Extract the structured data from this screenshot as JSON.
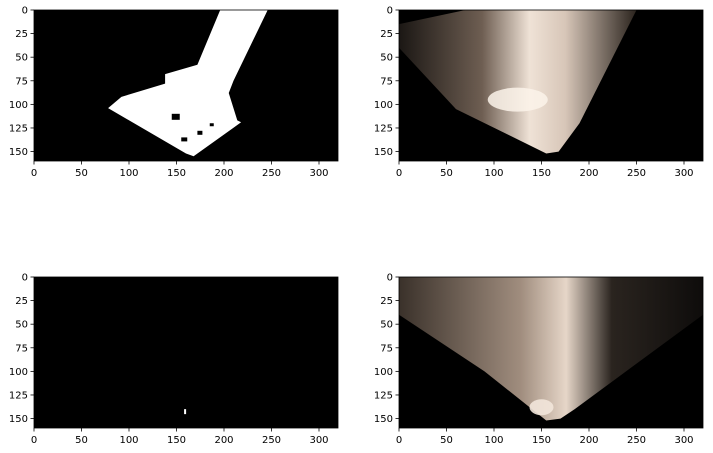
{
  "chart_data": [
    {
      "type": "image",
      "panel": "top-left",
      "content": "binary threshold mask (white region on black)",
      "xlim": [
        0,
        320
      ],
      "ylim": [
        160,
        0
      ],
      "xticks": [
        0,
        50,
        100,
        150,
        200,
        250,
        300
      ],
      "yticks": [
        0,
        25,
        50,
        75,
        100,
        125,
        150
      ]
    },
    {
      "type": "image",
      "panel": "top-right",
      "content": "perspective-warped camera image",
      "xlim": [
        0,
        320
      ],
      "ylim": [
        160,
        0
      ],
      "xticks": [
        0,
        50,
        100,
        150,
        200,
        250,
        300
      ],
      "yticks": [
        0,
        25,
        50,
        75,
        100,
        125,
        150
      ]
    },
    {
      "type": "image",
      "panel": "bottom-left",
      "content": "binary threshold mask (mostly black, small white speck)",
      "xlim": [
        0,
        320
      ],
      "ylim": [
        160,
        0
      ],
      "xticks": [
        0,
        50,
        100,
        150,
        200,
        250,
        300
      ],
      "yticks": [
        0,
        25,
        50,
        75,
        100,
        125,
        150
      ]
    },
    {
      "type": "image",
      "panel": "bottom-right",
      "content": "perspective-warped camera image",
      "xlim": [
        0,
        320
      ],
      "ylim": [
        160,
        0
      ],
      "xticks": [
        0,
        50,
        100,
        150,
        200,
        250,
        300
      ],
      "yticks": [
        0,
        25,
        50,
        75,
        100,
        125,
        150
      ]
    }
  ],
  "colors": {
    "background": "#000000",
    "mask": "#ffffff",
    "warp_light": "#e8d8c8",
    "warp_dark": "#2a221c"
  }
}
